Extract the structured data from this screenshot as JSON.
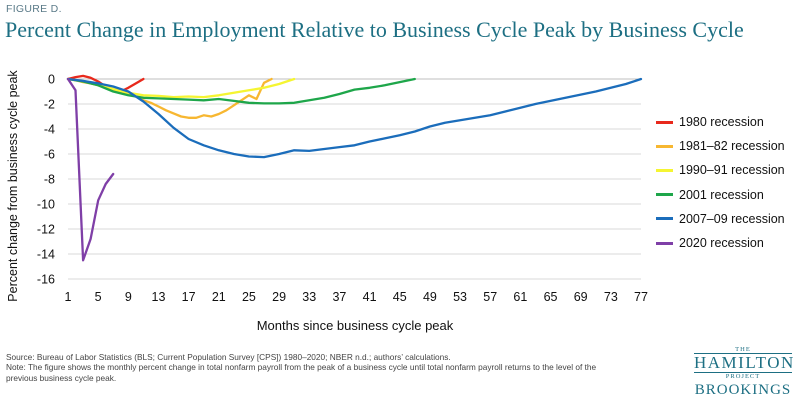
{
  "figure_label": "FIGURE D.",
  "figure_title": "Percent Change in Employment Relative to Business Cycle Peak by Business Cycle",
  "chart_data": {
    "type": "line",
    "title": "Percent Change in Employment Relative to Business Cycle Peak by Business Cycle",
    "xlabel": "Months since business cycle peak",
    "ylabel": "Percent change from business cycle peak",
    "xlim": [
      1,
      77
    ],
    "ylim": [
      -16,
      0
    ],
    "x_ticks": [
      1,
      5,
      9,
      13,
      17,
      21,
      25,
      29,
      33,
      37,
      41,
      45,
      49,
      53,
      57,
      61,
      65,
      69,
      73,
      77
    ],
    "y_ticks": [
      0,
      -2,
      -4,
      -6,
      -8,
      -10,
      -12,
      -14,
      -16
    ],
    "grid": "horizontal",
    "legend_position": "right",
    "series": [
      {
        "name": "1980 recession",
        "color": "#e8291c",
        "x": [
          1,
          2,
          3,
          4,
          5,
          6,
          7,
          8,
          9,
          10,
          11
        ],
        "y": [
          0,
          0.15,
          0.25,
          0.1,
          -0.2,
          -0.6,
          -0.9,
          -1.0,
          -0.7,
          -0.35,
          0
        ]
      },
      {
        "name": "1981–82 recession",
        "color": "#f7b731",
        "x": [
          1,
          2,
          3,
          4,
          5,
          6,
          7,
          8,
          9,
          10,
          11,
          12,
          13,
          14,
          15,
          16,
          17,
          18,
          19,
          20,
          21,
          22,
          23,
          24,
          25,
          26,
          27,
          28
        ],
        "y": [
          0,
          -0.1,
          -0.25,
          -0.35,
          -0.5,
          -0.7,
          -0.9,
          -1.0,
          -1.2,
          -1.4,
          -1.7,
          -1.9,
          -2.2,
          -2.5,
          -2.75,
          -3.0,
          -3.1,
          -3.1,
          -2.9,
          -3.0,
          -2.8,
          -2.5,
          -2.1,
          -1.7,
          -1.3,
          -1.6,
          -0.3,
          0
        ]
      },
      {
        "name": "1990–91 recession",
        "color": "#f5f532",
        "x": [
          1,
          3,
          5,
          7,
          9,
          11,
          13,
          15,
          17,
          19,
          21,
          23,
          25,
          27,
          29,
          31
        ],
        "y": [
          0,
          -0.2,
          -0.4,
          -0.8,
          -1.1,
          -1.3,
          -1.35,
          -1.45,
          -1.4,
          -1.45,
          -1.3,
          -1.1,
          -0.9,
          -0.7,
          -0.4,
          0
        ]
      },
      {
        "name": "2001 recession",
        "color": "#1ea64a",
        "x": [
          1,
          3,
          5,
          7,
          9,
          11,
          13,
          15,
          17,
          19,
          21,
          23,
          25,
          27,
          29,
          31,
          33,
          35,
          37,
          39,
          41,
          43,
          45,
          47
        ],
        "y": [
          0,
          -0.2,
          -0.5,
          -1.0,
          -1.3,
          -1.5,
          -1.55,
          -1.6,
          -1.65,
          -1.7,
          -1.6,
          -1.75,
          -1.9,
          -1.95,
          -1.95,
          -1.9,
          -1.7,
          -1.5,
          -1.2,
          -0.85,
          -0.7,
          -0.5,
          -0.25,
          0
        ]
      },
      {
        "name": "2007–09 recession",
        "color": "#1b6dbb",
        "x": [
          1,
          3,
          5,
          7,
          9,
          11,
          13,
          15,
          17,
          19,
          21,
          23,
          25,
          27,
          29,
          31,
          33,
          35,
          37,
          39,
          41,
          43,
          45,
          47,
          49,
          51,
          53,
          55,
          57,
          59,
          61,
          63,
          65,
          67,
          69,
          71,
          73,
          75,
          77
        ],
        "y": [
          0,
          -0.15,
          -0.35,
          -0.6,
          -1.0,
          -1.8,
          -2.8,
          -3.9,
          -4.8,
          -5.3,
          -5.7,
          -6.0,
          -6.2,
          -6.25,
          -6.0,
          -5.7,
          -5.75,
          -5.6,
          -5.45,
          -5.3,
          -5.0,
          -4.75,
          -4.5,
          -4.2,
          -3.8,
          -3.5,
          -3.3,
          -3.1,
          -2.9,
          -2.6,
          -2.3,
          -2.0,
          -1.75,
          -1.5,
          -1.25,
          -1.0,
          -0.7,
          -0.4,
          0
        ]
      },
      {
        "name": "2020 recession",
        "color": "#7f3fa7",
        "x": [
          1,
          2,
          3,
          4,
          5,
          6,
          7
        ],
        "y": [
          0,
          -0.9,
          -14.5,
          -12.8,
          -9.7,
          -8.4,
          -7.6
        ]
      }
    ]
  },
  "notes": {
    "source": "Source: Bureau of Labor Statistics (BLS; Current Population Survey [CPS]) 1980–2020; NBER n.d.; authors’ calculations.",
    "note": "Note: The figure shows the monthly percent change in total nonfarm payroll from the peak of a business cycle until total nonfarm payroll returns to the level of the previous business cycle peak."
  },
  "logo": {
    "the": "THE",
    "name": "HAMILTON",
    "project": "PROJECT",
    "brookings": "BROOKINGS"
  }
}
